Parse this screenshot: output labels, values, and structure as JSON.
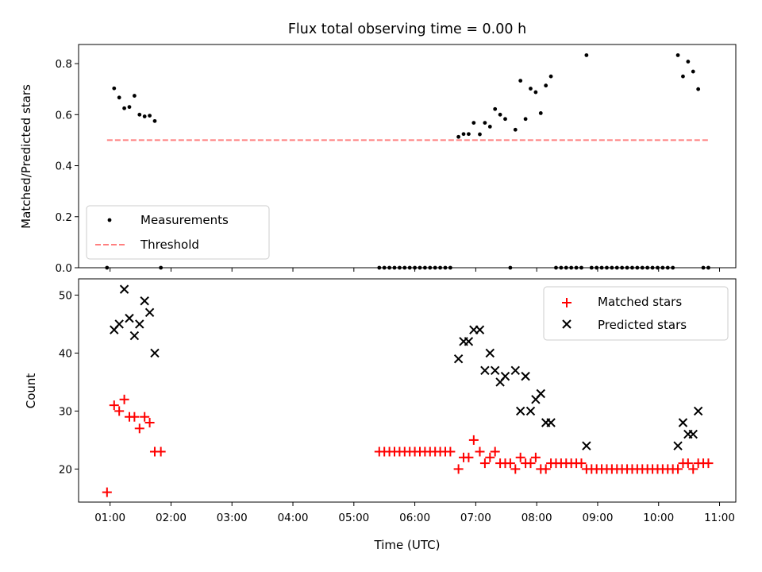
{
  "chart_data": {
    "title": "Flux total observing time = 0.00 h",
    "xlabel": "Time (UTC)",
    "xlim": [
      "00:29",
      "11:16"
    ],
    "xticks": [
      "01:00",
      "02:00",
      "03:00",
      "04:00",
      "05:00",
      "06:00",
      "07:00",
      "08:00",
      "09:00",
      "10:00",
      "11:00"
    ],
    "panels": [
      {
        "type": "scatter",
        "ylabel": "Matched/Predicted stars",
        "ylim": [
          0,
          0.875
        ],
        "yticks": [
          "0.0",
          "0.2",
          "0.4",
          "0.6",
          "0.8"
        ],
        "legend": "lower-left",
        "threshold": {
          "name": "Threshold",
          "value": 0.5,
          "x_start": "00:57",
          "x_end": "10:49",
          "color": "#ff7f7f"
        },
        "series": [
          {
            "name": "Measurements",
            "color": "#000000",
            "marker": "dot",
            "points": [
              [
                "00:57",
                0.0
              ],
              [
                "01:04",
                0.703
              ],
              [
                "01:09",
                0.667
              ],
              [
                "01:14",
                0.625
              ],
              [
                "01:19",
                0.63
              ],
              [
                "01:24",
                0.674
              ],
              [
                "01:29",
                0.6
              ],
              [
                "01:34",
                0.593
              ],
              [
                "01:39",
                0.596
              ],
              [
                "01:44",
                0.575
              ],
              [
                "01:50",
                0.0
              ],
              [
                "05:25",
                0.0
              ],
              [
                "05:30",
                0.0
              ],
              [
                "05:35",
                0.0
              ],
              [
                "05:40",
                0.0
              ],
              [
                "05:45",
                0.0
              ],
              [
                "05:50",
                0.0
              ],
              [
                "05:55",
                0.0
              ],
              [
                "06:00",
                0.0
              ],
              [
                "06:05",
                0.0
              ],
              [
                "06:10",
                0.0
              ],
              [
                "06:15",
                0.0
              ],
              [
                "06:20",
                0.0
              ],
              [
                "06:25",
                0.0
              ],
              [
                "06:30",
                0.0
              ],
              [
                "06:35",
                0.0
              ],
              [
                "06:43",
                0.513
              ],
              [
                "06:48",
                0.524
              ],
              [
                "06:53",
                0.524
              ],
              [
                "06:58",
                0.568
              ],
              [
                "07:04",
                0.523
              ],
              [
                "07:09",
                0.568
              ],
              [
                "07:14",
                0.553
              ],
              [
                "07:19",
                0.622
              ],
              [
                "07:24",
                0.6
              ],
              [
                "07:29",
                0.583
              ],
              [
                "07:34",
                0.0
              ],
              [
                "07:39",
                0.541
              ],
              [
                "07:44",
                0.733
              ],
              [
                "07:49",
                0.583
              ],
              [
                "07:54",
                0.702
              ],
              [
                "07:59",
                0.688
              ],
              [
                "08:04",
                0.606
              ],
              [
                "08:09",
                0.714
              ],
              [
                "08:14",
                0.75
              ],
              [
                "08:19",
                0.0
              ],
              [
                "08:24",
                0.0
              ],
              [
                "08:29",
                0.0
              ],
              [
                "08:34",
                0.0
              ],
              [
                "08:39",
                0.0
              ],
              [
                "08:44",
                0.0
              ],
              [
                "08:49",
                0.833
              ],
              [
                "08:54",
                0.0
              ],
              [
                "08:59",
                0.0
              ],
              [
                "09:04",
                0.0
              ],
              [
                "09:09",
                0.0
              ],
              [
                "09:14",
                0.0
              ],
              [
                "09:19",
                0.0
              ],
              [
                "09:24",
                0.0
              ],
              [
                "09:29",
                0.0
              ],
              [
                "09:34",
                0.0
              ],
              [
                "09:39",
                0.0
              ],
              [
                "09:44",
                0.0
              ],
              [
                "09:49",
                0.0
              ],
              [
                "09:54",
                0.0
              ],
              [
                "09:59",
                0.0
              ],
              [
                "10:04",
                0.0
              ],
              [
                "10:09",
                0.0
              ],
              [
                "10:14",
                0.0
              ],
              [
                "10:19",
                0.833
              ],
              [
                "10:24",
                0.75
              ],
              [
                "10:29",
                0.808
              ],
              [
                "10:34",
                0.769
              ],
              [
                "10:39",
                0.7
              ],
              [
                "10:44",
                0.0
              ],
              [
                "10:49",
                0.0
              ]
            ]
          }
        ]
      },
      {
        "type": "scatter",
        "ylabel": "Count",
        "ylim": [
          14.3,
          52.8
        ],
        "yticks": [
          "20",
          "30",
          "40",
          "50"
        ],
        "legend": "upper-right",
        "series": [
          {
            "name": "Matched stars",
            "color": "#ff0000",
            "marker": "plus",
            "points": [
              [
                "00:57",
                16
              ],
              [
                "01:04",
                31
              ],
              [
                "01:09",
                30
              ],
              [
                "01:14",
                32
              ],
              [
                "01:19",
                29
              ],
              [
                "01:24",
                29
              ],
              [
                "01:29",
                27
              ],
              [
                "01:34",
                29
              ],
              [
                "01:39",
                28
              ],
              [
                "01:44",
                23
              ],
              [
                "01:50",
                23
              ],
              [
                "05:25",
                23
              ],
              [
                "05:30",
                23
              ],
              [
                "05:35",
                23
              ],
              [
                "05:40",
                23
              ],
              [
                "05:45",
                23
              ],
              [
                "05:50",
                23
              ],
              [
                "05:55",
                23
              ],
              [
                "06:00",
                23
              ],
              [
                "06:05",
                23
              ],
              [
                "06:10",
                23
              ],
              [
                "06:15",
                23
              ],
              [
                "06:20",
                23
              ],
              [
                "06:25",
                23
              ],
              [
                "06:30",
                23
              ],
              [
                "06:35",
                23
              ],
              [
                "06:43",
                20
              ],
              [
                "06:48",
                22
              ],
              [
                "06:53",
                22
              ],
              [
                "06:58",
                25
              ],
              [
                "07:04",
                23
              ],
              [
                "07:09",
                21
              ],
              [
                "07:14",
                22
              ],
              [
                "07:19",
                23
              ],
              [
                "07:24",
                21
              ],
              [
                "07:29",
                21
              ],
              [
                "07:34",
                21
              ],
              [
                "07:39",
                20
              ],
              [
                "07:44",
                22
              ],
              [
                "07:49",
                21
              ],
              [
                "07:54",
                21
              ],
              [
                "07:59",
                22
              ],
              [
                "08:04",
                20
              ],
              [
                "08:09",
                20
              ],
              [
                "08:14",
                21
              ],
              [
                "08:19",
                21
              ],
              [
                "08:24",
                21
              ],
              [
                "08:29",
                21
              ],
              [
                "08:34",
                21
              ],
              [
                "08:39",
                21
              ],
              [
                "08:44",
                21
              ],
              [
                "08:49",
                20
              ],
              [
                "08:54",
                20
              ],
              [
                "08:59",
                20
              ],
              [
                "09:04",
                20
              ],
              [
                "09:09",
                20
              ],
              [
                "09:14",
                20
              ],
              [
                "09:19",
                20
              ],
              [
                "09:24",
                20
              ],
              [
                "09:29",
                20
              ],
              [
                "09:34",
                20
              ],
              [
                "09:39",
                20
              ],
              [
                "09:44",
                20
              ],
              [
                "09:49",
                20
              ],
              [
                "09:54",
                20
              ],
              [
                "09:59",
                20
              ],
              [
                "10:04",
                20
              ],
              [
                "10:09",
                20
              ],
              [
                "10:14",
                20
              ],
              [
                "10:19",
                20
              ],
              [
                "10:24",
                21
              ],
              [
                "10:29",
                21
              ],
              [
                "10:34",
                20
              ],
              [
                "10:39",
                21
              ],
              [
                "10:44",
                21
              ],
              [
                "10:49",
                21
              ]
            ]
          },
          {
            "name": "Predicted stars",
            "color": "#000000",
            "marker": "x",
            "points": [
              [
                "01:04",
                44
              ],
              [
                "01:09",
                45
              ],
              [
                "01:14",
                51
              ],
              [
                "01:19",
                46
              ],
              [
                "01:24",
                43
              ],
              [
                "01:29",
                45
              ],
              [
                "01:34",
                49
              ],
              [
                "01:39",
                47
              ],
              [
                "01:44",
                40
              ],
              [
                "06:43",
                39
              ],
              [
                "06:48",
                42
              ],
              [
                "06:53",
                42
              ],
              [
                "06:58",
                44
              ],
              [
                "07:04",
                44
              ],
              [
                "07:09",
                37
              ],
              [
                "07:14",
                40
              ],
              [
                "07:19",
                37
              ],
              [
                "07:24",
                35
              ],
              [
                "07:29",
                36
              ],
              [
                "07:39",
                37
              ],
              [
                "07:44",
                30
              ],
              [
                "07:49",
                36
              ],
              [
                "07:54",
                30
              ],
              [
                "07:59",
                32
              ],
              [
                "08:04",
                33
              ],
              [
                "08:09",
                28
              ],
              [
                "08:14",
                28
              ],
              [
                "08:49",
                24
              ],
              [
                "10:19",
                24
              ],
              [
                "10:24",
                28
              ],
              [
                "10:29",
                26
              ],
              [
                "10:34",
                26
              ],
              [
                "10:39",
                30
              ]
            ]
          }
        ]
      }
    ]
  }
}
